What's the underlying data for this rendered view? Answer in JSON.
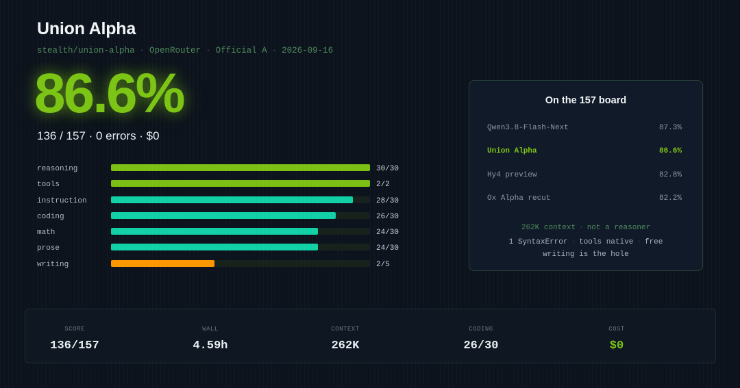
{
  "header": {
    "title": "Union Alpha",
    "meta": [
      "stealth/union-alpha",
      "OpenRouter",
      "Official A",
      "2026-09-16"
    ]
  },
  "score": {
    "percent": "86.6%",
    "summary": "136 / 157 · 0 errors · $0"
  },
  "categories": [
    {
      "label": "reasoning",
      "value": "30/30",
      "fraction": 1.0,
      "color": "#7cbf15"
    },
    {
      "label": "tools",
      "value": "2/2",
      "fraction": 1.0,
      "color": "#7cbf15"
    },
    {
      "label": "instruction",
      "value": "28/30",
      "fraction": 0.9333,
      "color": "#12d1a6"
    },
    {
      "label": "coding",
      "value": "26/30",
      "fraction": 0.8667,
      "color": "#12d1a6"
    },
    {
      "label": "math",
      "value": "24/30",
      "fraction": 0.8,
      "color": "#12d1a6"
    },
    {
      "label": "prose",
      "value": "24/30",
      "fraction": 0.8,
      "color": "#12d1a6"
    },
    {
      "label": "writing",
      "value": "2/5",
      "fraction": 0.4,
      "color": "#ff9800"
    }
  ],
  "board": {
    "title": "On the 157 board",
    "rows": [
      {
        "name": "Qwen3.8-Flash-Next",
        "score": "87.3%",
        "highlight": false
      },
      {
        "name": "Union Alpha",
        "score": "86.6%",
        "highlight": true
      },
      {
        "name": "Hy4 preview",
        "score": "82.8%",
        "highlight": false
      },
      {
        "name": "Ox Alpha recut",
        "score": "82.2%",
        "highlight": false
      }
    ],
    "note_line1": [
      "262K context",
      "not a reasoner"
    ],
    "note_line2": [
      "1 SyntaxError",
      "tools native",
      "free"
    ],
    "note_line3": "writing is the hole"
  },
  "stats": [
    {
      "label": "SCORE",
      "value": "136/157"
    },
    {
      "label": "WALL",
      "value": "4.59h"
    },
    {
      "label": "CONTEXT",
      "value": "262K"
    },
    {
      "label": "CODING",
      "value": "26/30"
    },
    {
      "label": "COST",
      "value": "$0",
      "accent": true
    }
  ],
  "colors": {
    "accent_green": "#7cc416",
    "teal": "#12d1a6",
    "orange": "#ff9800",
    "background": "#0d131d"
  }
}
